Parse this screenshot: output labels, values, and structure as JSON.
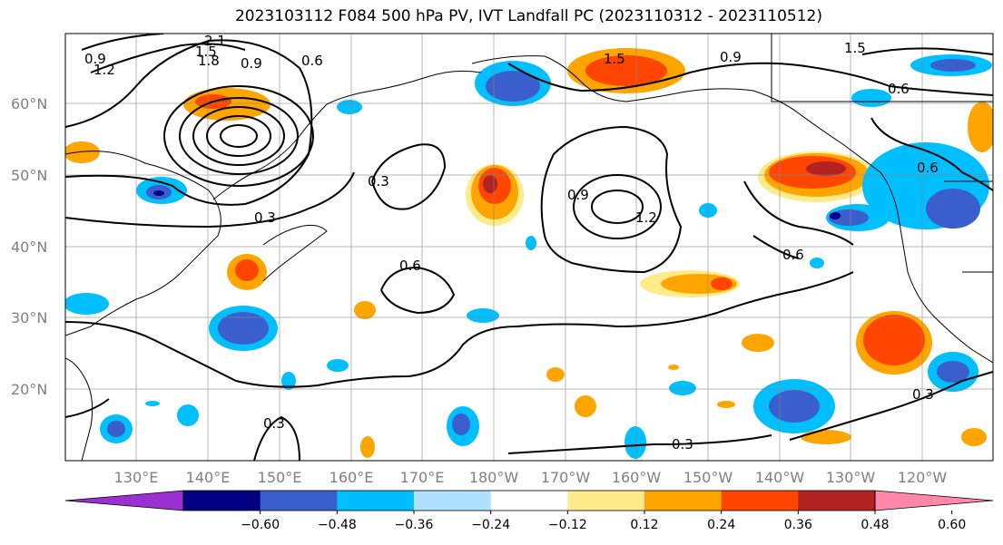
{
  "title": "2023103112 F084 500 hPa PV, IVT Landfall PC (2023110312 - 2023110512)",
  "lat_labels": [
    "60°N",
    "50°N",
    "40°N",
    "30°N",
    "20°N"
  ],
  "lon_labels": [
    "130°E",
    "140°E",
    "150°E",
    "160°E",
    "170°E",
    "180°W",
    "170°W",
    "160°W",
    "150°W",
    "140°W",
    "130°W",
    "120°W"
  ],
  "contour_labels": [
    "0.9",
    "1.2",
    "1.5",
    "1.8",
    "2.1",
    "0.6",
    "0.9",
    "1.5",
    "0.6",
    "0.3",
    "0.6",
    "0.9",
    "1.2",
    "1.5",
    "0.9",
    "0.6",
    "0.6",
    "0.3",
    "0.3",
    "0.3",
    "0.3"
  ],
  "colorbar": {
    "ticks": [
      "−0.60",
      "−0.48",
      "−0.36",
      "−0.24",
      "−0.12",
      "0.12",
      "0.24",
      "0.36",
      "0.48",
      "0.60"
    ],
    "colors": [
      "#9b30d0",
      "#000080",
      "#3a5fcd",
      "#00bfff",
      "#b0e2ff",
      "#ffffff",
      "#ffeb8a",
      "#ffa500",
      "#ff4500",
      "#b22222",
      "#ff88aa"
    ]
  }
}
